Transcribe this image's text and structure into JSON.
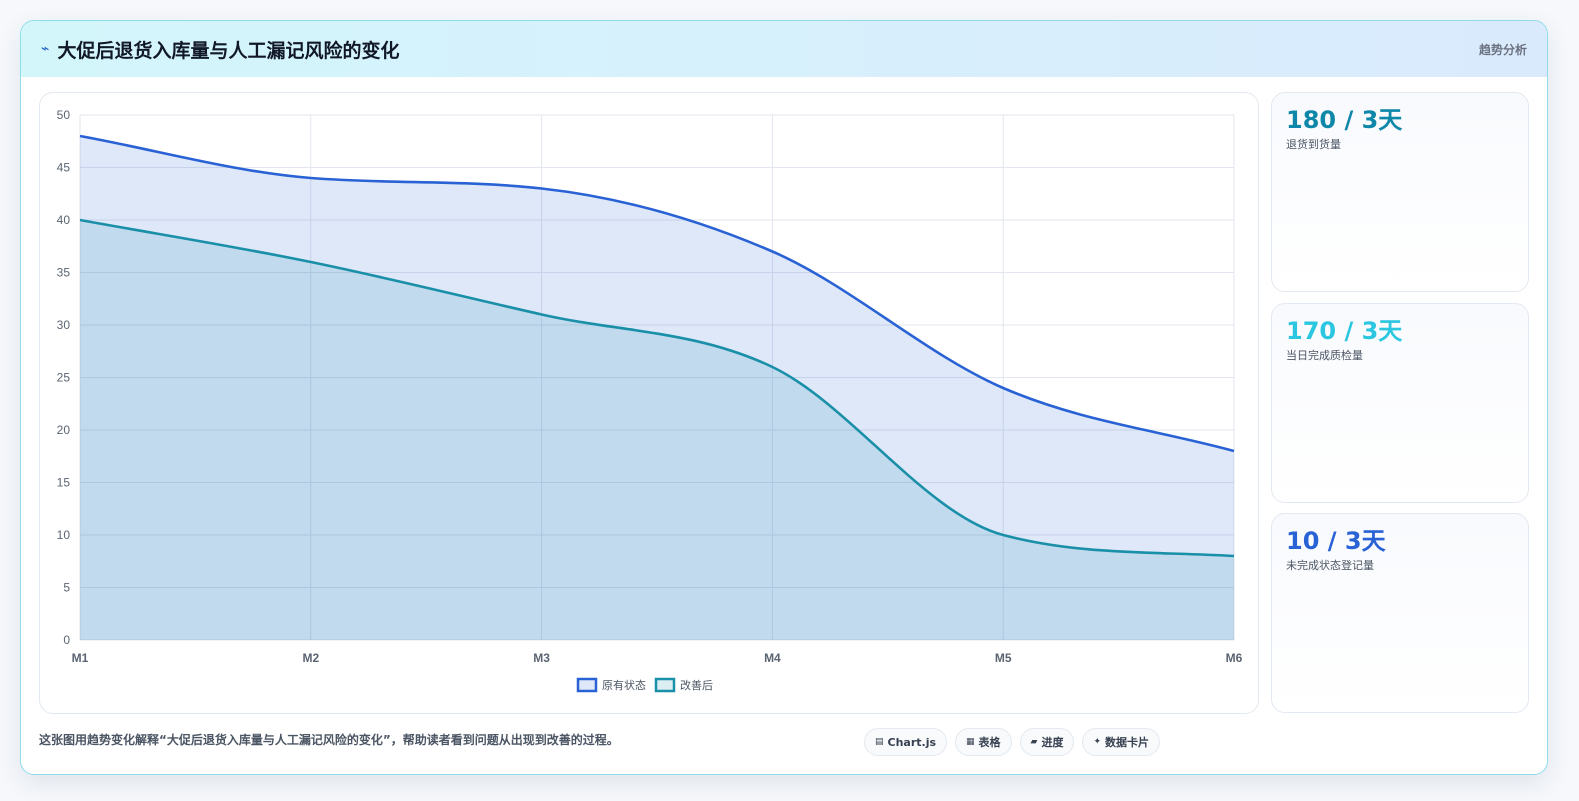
{
  "header": {
    "title": "大促后退货入库量与人工漏记风险的变化",
    "tag": "趋势分析",
    "icon": "bolt-icon"
  },
  "colors": {
    "series1": "#2962d4",
    "series1_fill": "rgba(41, 98, 212, 0.15)",
    "series2": "#1a8fa8",
    "series2_fill": "rgba(26, 143, 168, 0.15)",
    "stat1": "#0e87a8",
    "stat2": "#2bc6e0",
    "stat3": "#2962d4"
  },
  "chart_data": {
    "type": "area",
    "categories": [
      "M1",
      "M2",
      "M3",
      "M4",
      "M5",
      "M6"
    ],
    "series": [
      {
        "name": "原有状态",
        "values": [
          48,
          44,
          43,
          37,
          24,
          18
        ]
      },
      {
        "name": "改善后",
        "values": [
          40,
          36,
          31,
          26,
          10,
          8
        ]
      }
    ],
    "ylim": [
      0,
      50
    ],
    "yticks": [
      0,
      5,
      10,
      15,
      20,
      25,
      30,
      35,
      40,
      45,
      50
    ],
    "grid": true,
    "legend": "bottom-center",
    "smooth": true
  },
  "stats": [
    {
      "value": "180 / 3天",
      "label": "退货到货量"
    },
    {
      "value": "170 / 3天",
      "label": "当日完成质检量"
    },
    {
      "value": "10 / 3天",
      "label": "未完成状态登记量"
    }
  ],
  "footer": {
    "note": "这张图用趋势变化解释“大促后退货入库量与人工漏记风险的变化”，帮助读者看到问题从出现到改善的过程。",
    "chips": [
      {
        "icon": "▤",
        "label": "Chart.js"
      },
      {
        "icon": "▦",
        "label": "表格"
      },
      {
        "icon": "▰",
        "label": "进度"
      },
      {
        "icon": "✦",
        "label": "数据卡片"
      }
    ]
  }
}
